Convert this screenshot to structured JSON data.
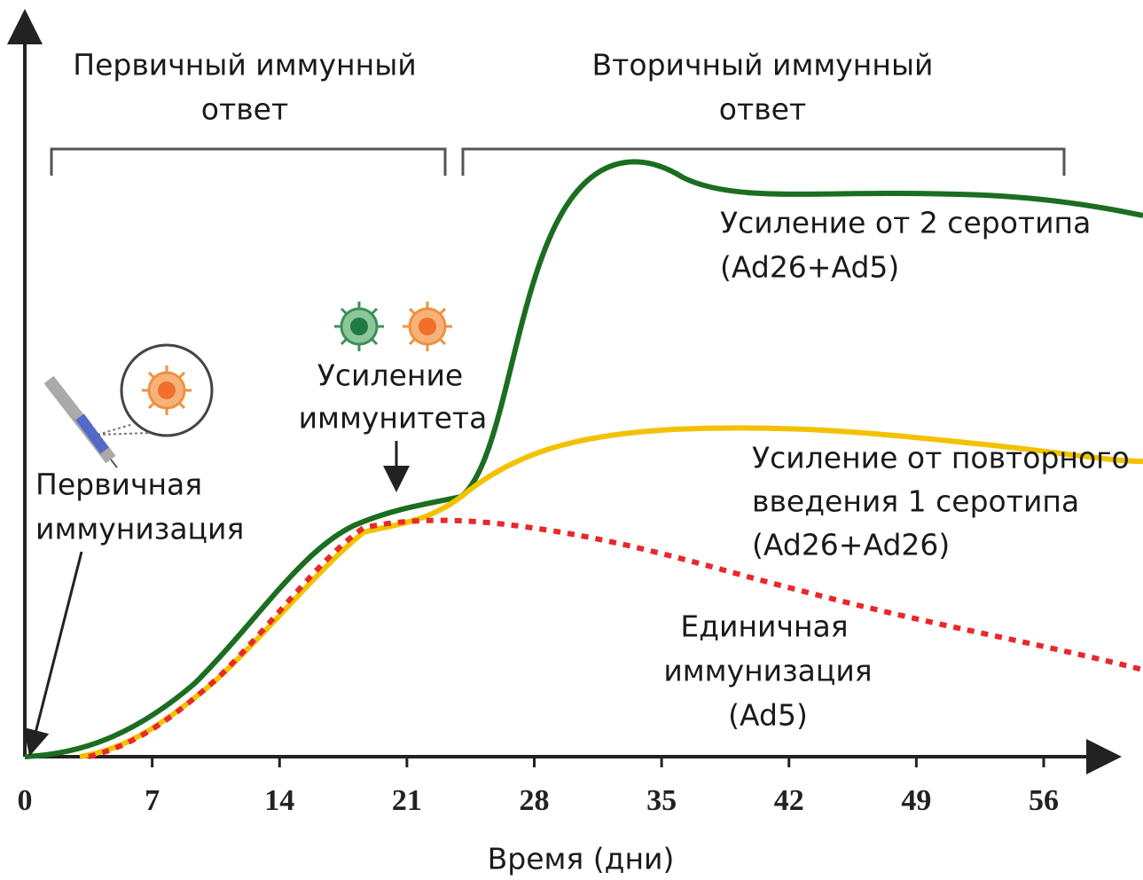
{
  "phases": {
    "primary": [
      "Первичный иммунный",
      "ответ"
    ],
    "secondary": [
      "Вторичный иммунный",
      "ответ"
    ]
  },
  "curves": {
    "two_serotypes": [
      "Усиление от 2 серотипа",
      "(Ad26+Ad5)"
    ],
    "repeat_serotype": [
      "Усиление от повторного",
      "введения 1 серотипа",
      "(Ad26+Ad26)"
    ],
    "single": [
      "Единичная",
      "иммунизация",
      "(Ad5)"
    ]
  },
  "events": {
    "boost": [
      "Усиление",
      "иммунитета"
    ],
    "prime": [
      "Первичная",
      "иммунизация"
    ]
  },
  "x_axis": {
    "ticks": [
      "0",
      "7",
      "14",
      "21",
      "28",
      "35",
      "42",
      "49",
      "56"
    ],
    "title": "Время (дни)"
  }
}
